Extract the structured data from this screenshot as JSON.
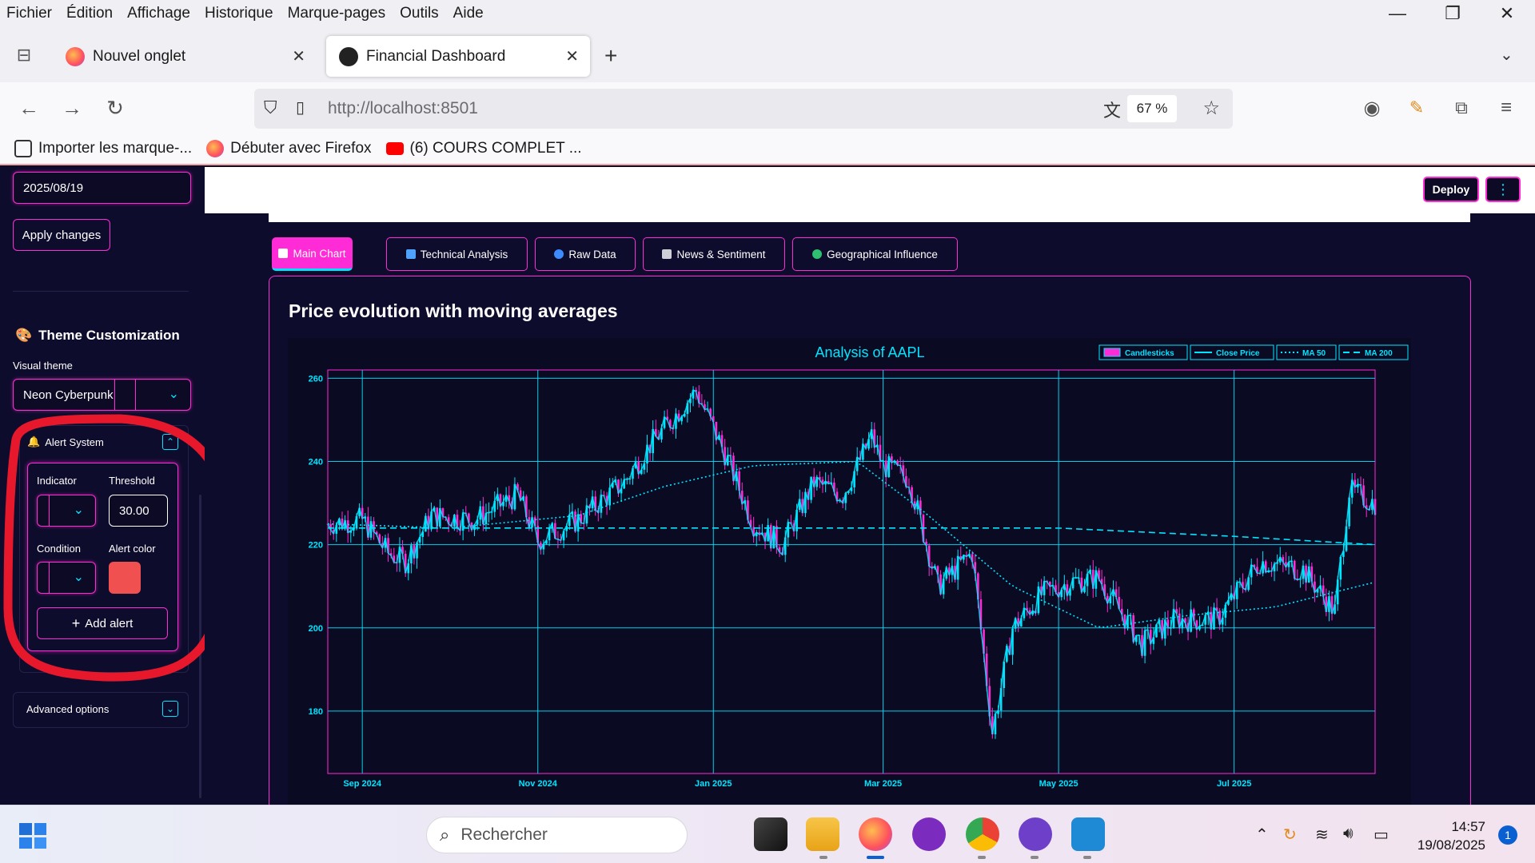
{
  "menubar": {
    "items": [
      "Fichier",
      "Édition",
      "Affichage",
      "Historique",
      "Marque-pages",
      "Outils",
      "Aide"
    ]
  },
  "tabs": [
    {
      "title": "Nouvel onglet",
      "active": false
    },
    {
      "title": "Financial Dashboard",
      "active": true
    }
  ],
  "navbar": {
    "url_host": "http://localhost",
    "url_port": ":8501",
    "zoom": "67 %"
  },
  "bookmarks": [
    "Importer les marque-...",
    "Débuter avec Firefox",
    "(6) COURS COMPLET ..."
  ],
  "sidebar": {
    "date_value": "2025/08/19",
    "apply_label": "Apply changes",
    "theme_heading": "Theme Customization",
    "visual_theme_label": "Visual theme",
    "visual_theme_value": "Neon Cyberpunk",
    "alert_title": "Alert System",
    "indicator_label": "Indicator",
    "threshold_label": "Threshold",
    "threshold_value": "30.00",
    "condition_label": "Condition",
    "alert_color_label": "Alert color",
    "alert_color": "#f05050",
    "add_alert_label": "Add alert",
    "advanced_label": "Advanced options"
  },
  "app": {
    "deploy_label": "Deploy"
  },
  "main_tabs": [
    {
      "label": "Main Chart",
      "active": true,
      "icon": "chart-icon"
    },
    {
      "label": "Technical Analysis",
      "active": false,
      "icon": "bar-chart-icon"
    },
    {
      "label": "Raw Data",
      "active": false,
      "icon": "magnifier-icon"
    },
    {
      "label": "News & Sentiment",
      "active": false,
      "icon": "newspaper-icon"
    },
    {
      "label": "Geographical Influence",
      "active": false,
      "icon": "globe-icon"
    }
  ],
  "panel_title": "Price evolution with moving averages",
  "chart_data": {
    "type": "line",
    "title": "Analysis of AAPL",
    "legend": [
      "Candlesticks",
      "Close Price",
      "MA 50",
      "MA 200"
    ],
    "legend_position": "top-right",
    "grid": true,
    "ylim": [
      165,
      262
    ],
    "yticks": [
      180,
      200,
      220,
      240,
      260
    ],
    "xlim": [
      "2024-08-20",
      "2025-08-19"
    ],
    "xticks": [
      "Sep 2024",
      "Nov 2024",
      "Jan 2025",
      "Mar 2025",
      "May 2025",
      "Jul 2025"
    ],
    "series": [
      {
        "name": "Close Price",
        "x": [
          "2024-08-20",
          "2024-09-01",
          "2024-09-10",
          "2024-09-16",
          "2024-09-25",
          "2024-10-10",
          "2024-10-25",
          "2024-11-01",
          "2024-11-15",
          "2024-12-01",
          "2024-12-10",
          "2024-12-26",
          "2025-01-05",
          "2025-01-15",
          "2025-01-25",
          "2025-02-05",
          "2025-02-15",
          "2025-02-25",
          "2025-03-01",
          "2025-03-10",
          "2025-03-20",
          "2025-04-01",
          "2025-04-08",
          "2025-04-15",
          "2025-04-25",
          "2025-05-05",
          "2025-05-15",
          "2025-05-30",
          "2025-06-10",
          "2025-06-25",
          "2025-07-10",
          "2025-07-25",
          "2025-08-05",
          "2025-08-10",
          "2025-08-19"
        ],
        "y": [
          225,
          226,
          218,
          216,
          227,
          226,
          232,
          221,
          226,
          235,
          244,
          257,
          242,
          225,
          220,
          235,
          232,
          246,
          239,
          236,
          210,
          218,
          175,
          200,
          208,
          211,
          212,
          196,
          202,
          202,
          216,
          214,
          204,
          233,
          230
        ]
      },
      {
        "name": "MA 50",
        "x": [
          "2024-08-20",
          "2024-10-01",
          "2024-11-15",
          "2024-12-15",
          "2025-01-15",
          "2025-02-20",
          "2025-03-15",
          "2025-04-15",
          "2025-05-15",
          "2025-06-15",
          "2025-07-15",
          "2025-08-19"
        ],
        "y": [
          225,
          224,
          227,
          234,
          239,
          240,
          228,
          210,
          200,
          203,
          205,
          211
        ]
      },
      {
        "name": "MA 200",
        "x": [
          "2024-08-20",
          "2024-12-01",
          "2025-03-01",
          "2025-05-01",
          "2025-07-01",
          "2025-08-19"
        ],
        "y": [
          224,
          224,
          224,
          224,
          222,
          220
        ]
      }
    ]
  },
  "taskbar": {
    "search_placeholder": "Rechercher",
    "time": "14:57",
    "date": "19/08/2025",
    "notifications": "1"
  }
}
